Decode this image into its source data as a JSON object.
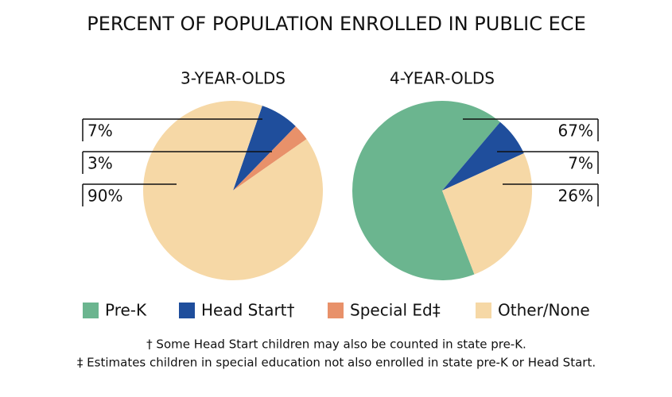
{
  "title": "PERCENT OF POPULATION ENROLLED IN PUBLIC ECE",
  "chart_data": [
    {
      "type": "pie",
      "title": "3-YEAR-OLDS",
      "values": [
        7,
        3,
        90
      ],
      "value_labels": [
        "7%",
        "3%",
        "90%"
      ],
      "colors": [
        "#1f4e9c",
        "#e8916a",
        "#f6d8a6"
      ]
    },
    {
      "type": "pie",
      "title": "4-YEAR-OLDS",
      "values": [
        67,
        7,
        26
      ],
      "value_labels": [
        "67%",
        "7%",
        "26%"
      ],
      "colors": [
        "#6bb58f",
        "#1f4e9c",
        "#f6d8a6"
      ]
    }
  ],
  "legend": [
    {
      "name": "Pre-K",
      "color": "#6bb58f"
    },
    {
      "name": "Head Start†",
      "color": "#1f4e9c"
    },
    {
      "name": "Special Ed‡",
      "color": "#e8916a"
    },
    {
      "name": "Other/None",
      "color": "#f6d8a6"
    }
  ],
  "footnotes": [
    "† Some Head Start children may also be counted in state pre-K.",
    "‡ Estimates children in special education not also enrolled in state pre-K or Head Start."
  ]
}
